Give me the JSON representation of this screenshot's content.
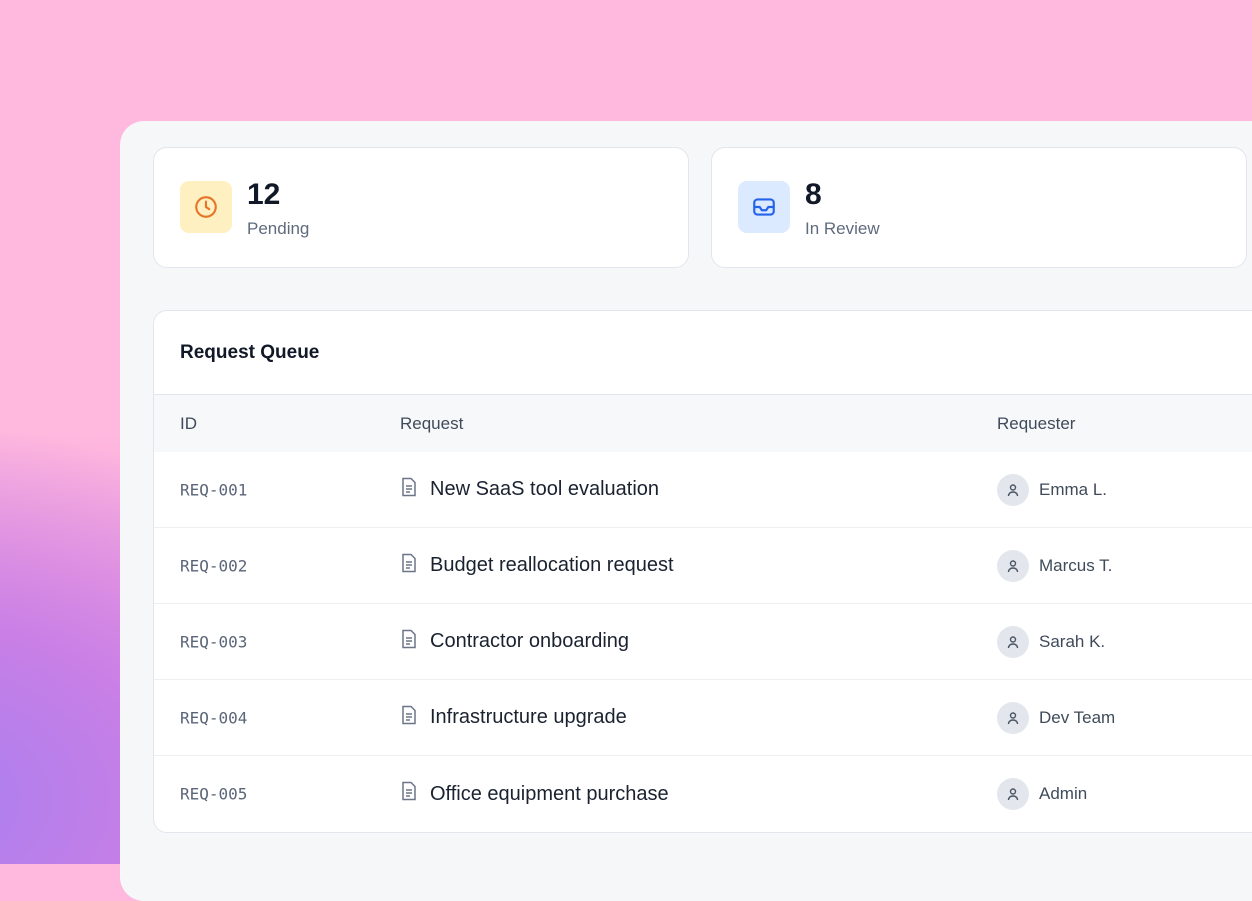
{
  "stats": [
    {
      "value": "12",
      "label": "Pending",
      "icon": "clock-icon",
      "icon_bg": "#fff0c2",
      "icon_color": "#e5772a"
    },
    {
      "value": "8",
      "label": "In Review",
      "icon": "inbox-icon",
      "icon_bg": "#dbeafe",
      "icon_color": "#2563eb"
    }
  ],
  "table": {
    "title": "Request Queue",
    "columns": [
      "ID",
      "Request",
      "Requester"
    ],
    "rows": [
      {
        "id": "REQ-001",
        "request": "New SaaS tool evaluation",
        "requester": "Emma L."
      },
      {
        "id": "REQ-002",
        "request": "Budget reallocation request",
        "requester": "Marcus T."
      },
      {
        "id": "REQ-003",
        "request": "Contractor onboarding",
        "requester": "Sarah K."
      },
      {
        "id": "REQ-004",
        "request": "Infrastructure upgrade",
        "requester": "Dev Team"
      },
      {
        "id": "REQ-005",
        "request": "Office equipment purchase",
        "requester": "Admin"
      }
    ]
  }
}
